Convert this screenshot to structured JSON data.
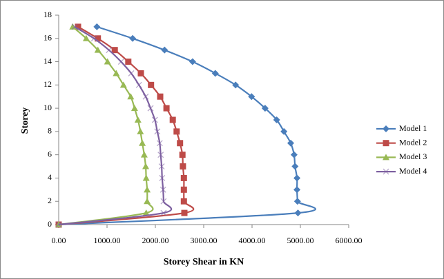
{
  "chart_data": {
    "type": "line",
    "xlabel": "Storey Shear in KN",
    "ylabel": "Storey",
    "xlim": [
      0,
      6000
    ],
    "xticks": [
      {
        "value": 0,
        "label": "0.00"
      },
      {
        "value": 1000,
        "label": "1000.00"
      },
      {
        "value": 2000,
        "label": "2000.00"
      },
      {
        "value": 3000,
        "label": "3000.00"
      },
      {
        "value": 4000,
        "label": "4000.00"
      },
      {
        "value": 5000,
        "label": "5000.00"
      },
      {
        "value": 6000,
        "label": "6000.00"
      }
    ],
    "ylim": [
      0,
      18
    ],
    "yticks": [
      0,
      2,
      4,
      6,
      8,
      10,
      12,
      14,
      16,
      18
    ],
    "grid": false,
    "legend": "right",
    "series": [
      {
        "name": "Model 1",
        "color": "#4a7ebb",
        "marker": "diamond",
        "x": [
          0,
          4950,
          4940,
          4930,
          4930,
          4890,
          4870,
          4800,
          4660,
          4510,
          4270,
          3990,
          3660,
          3240,
          2770,
          2190,
          1530,
          790
        ],
        "values": [
          0,
          1,
          2,
          3,
          4,
          5,
          6,
          7,
          8,
          9,
          10,
          11,
          12,
          13,
          14,
          15,
          16,
          17
        ]
      },
      {
        "name": "Model 2",
        "color": "#be4b48",
        "marker": "square",
        "x": [
          0,
          2600,
          2590,
          2590,
          2590,
          2570,
          2560,
          2510,
          2440,
          2360,
          2230,
          2100,
          1910,
          1700,
          1440,
          1160,
          810,
          400
        ],
        "values": [
          0,
          1,
          2,
          3,
          4,
          5,
          6,
          7,
          8,
          9,
          10,
          11,
          12,
          13,
          14,
          15,
          16,
          17
        ]
      },
      {
        "name": "Model 3",
        "color": "#98b954",
        "marker": "triangle",
        "x": [
          0,
          1810,
          1830,
          1830,
          1810,
          1800,
          1770,
          1730,
          1690,
          1640,
          1570,
          1490,
          1340,
          1190,
          1010,
          810,
          570,
          290
        ],
        "values": [
          0,
          1,
          2,
          3,
          4,
          5,
          6,
          7,
          8,
          9,
          10,
          11,
          12,
          13,
          14,
          15,
          16,
          17
        ]
      },
      {
        "name": "Model 4",
        "color": "#7d60a0",
        "marker": "x",
        "x": [
          0,
          2170,
          2170,
          2160,
          2140,
          2130,
          2110,
          2090,
          2040,
          1990,
          1900,
          1800,
          1660,
          1500,
          1290,
          1040,
          730,
          330
        ],
        "values": [
          0,
          1,
          2,
          3,
          4,
          5,
          6,
          7,
          8,
          9,
          10,
          11,
          12,
          13,
          14,
          15,
          16,
          17
        ]
      }
    ]
  }
}
